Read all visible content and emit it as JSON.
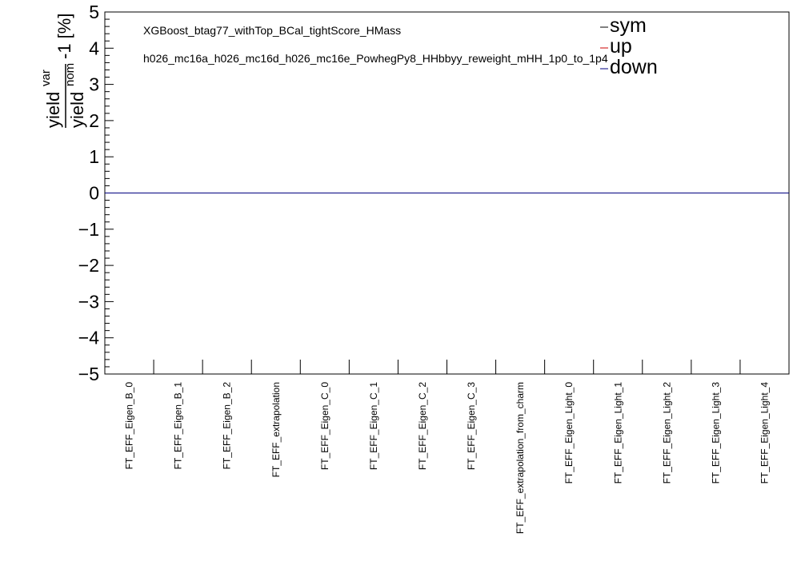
{
  "chart_data": {
    "type": "line",
    "title_lines": [
      "XGBoost_btag77_withTop_BCal_tightScore_HMass",
      "h026_mc16a_h026_mc16d_h026_mc16e_PowhegPy8_HHbbyy_reweight_mHH_1p0_to_1p4"
    ],
    "ylabel": {
      "numerator": "yield",
      "numerator_sup": "var",
      "denominator": "yield",
      "denominator_sup": "nom",
      "suffix": "-1 [%]"
    },
    "ylim": [
      -5,
      5
    ],
    "yticks": [
      "5",
      "4",
      "3",
      "2",
      "1",
      "0",
      "−1",
      "−2",
      "−3",
      "−4",
      "−5"
    ],
    "categories": [
      "FT_EFF_Eigen_B_0",
      "FT_EFF_Eigen_B_1",
      "FT_EFF_Eigen_B_2",
      "FT_EFF_extrapolation",
      "FT_EFF_Eigen_C_0",
      "FT_EFF_Eigen_C_1",
      "FT_EFF_Eigen_C_2",
      "FT_EFF_Eigen_C_3",
      "FT_EFF_extrapolation_from_charm",
      "FT_EFF_Eigen_Light_0",
      "FT_EFF_Eigen_Light_1",
      "FT_EFF_Eigen_Light_2",
      "FT_EFF_Eigen_Light_3",
      "FT_EFF_Eigen_Light_4"
    ],
    "series": [
      {
        "name": "sym",
        "color": "#000000",
        "values": [
          0,
          0,
          0,
          0,
          0,
          0,
          0,
          0,
          0,
          0,
          0,
          0,
          0,
          0
        ]
      },
      {
        "name": "up",
        "color": "#cc0000",
        "values": [
          0,
          0,
          0,
          0,
          0,
          0,
          0,
          0,
          0,
          0,
          0,
          0,
          0,
          0
        ]
      },
      {
        "name": "down",
        "color": "#000080",
        "values": [
          0,
          0,
          0,
          0,
          0,
          0,
          0,
          0,
          0,
          0,
          0,
          0,
          0,
          0
        ]
      }
    ],
    "legend_position": "top-right",
    "grid": false
  }
}
